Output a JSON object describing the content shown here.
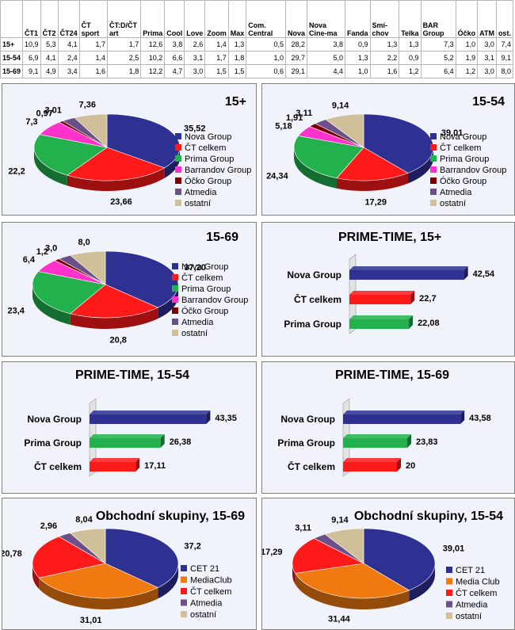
{
  "table": {
    "columns": [
      "",
      "ČT1",
      "ČT2",
      "ČT24",
      "ČT sport",
      "ČT:D/ČT art",
      "Prima",
      "Cool",
      "Love",
      "Zoom",
      "Max",
      "Com. Central",
      "Nova",
      "Nova Cine-ma",
      "Fanda",
      "Smí-chov",
      "Telka",
      "BAR Group",
      "Óčko",
      "ATM",
      "ost."
    ],
    "rows": [
      {
        "label": "15+",
        "values": [
          "10,9",
          "5,3",
          "4,1",
          "1,7",
          "1,7",
          "12,6",
          "3,8",
          "2,6",
          "1,4",
          "1,3",
          "0,5",
          "28,2",
          "3,8",
          "0,9",
          "1,3",
          "1,3",
          "7,3",
          "1,0",
          "3,0",
          "7,4"
        ]
      },
      {
        "label": "15-54",
        "values": [
          "6,9",
          "4,1",
          "2,4",
          "1,4",
          "2,5",
          "10,2",
          "6,6",
          "3,1",
          "1,7",
          "1,8",
          "1,0",
          "29,7",
          "5,0",
          "1,3",
          "2,2",
          "0,9",
          "5,2",
          "1,9",
          "3,1",
          "9,1"
        ]
      },
      {
        "label": "15-69",
        "values": [
          "9,1",
          "4,9",
          "3,4",
          "1,6",
          "1,8",
          "12,2",
          "4,7",
          "3,0",
          "1,5",
          "1,5",
          "0,6",
          "29,1",
          "4,4",
          "1,0",
          "1,6",
          "1,2",
          "6,4",
          "1,2",
          "3,0",
          "8,0"
        ]
      }
    ]
  },
  "colors": {
    "nova": "#2e3192",
    "ct": "#ff1a1a",
    "prima": "#22b14c",
    "barrandov": "#ff33cc",
    "ocko": "#7a0000",
    "atmedia": "#6b4f8a",
    "ostatni": "#cfc09a",
    "mediaclub": "#f07a10"
  },
  "chart_data": [
    {
      "type": "pie",
      "title": "15+",
      "categories": [
        "Nova Group",
        "ČT celkem",
        "Prima Group",
        "Barrandov Group",
        "Óčko Group",
        "Atmedia",
        "ostatní"
      ],
      "keys": [
        "nova",
        "ct",
        "prima",
        "barrandov",
        "ocko",
        "atmedia",
        "ostatni"
      ],
      "values": [
        35.52,
        23.66,
        22.2,
        7.3,
        0.97,
        3.01,
        7.36
      ],
      "value_labels": [
        "35,52",
        "23,66",
        "22,2",
        "7,3",
        "0,97",
        "3,01",
        "7,36"
      ],
      "legend": "right"
    },
    {
      "type": "pie",
      "title": "15-54",
      "categories": [
        "Nova Group",
        "ČT celkem",
        "Prima Group",
        "Barrandov Group",
        "Óčko Group",
        "Atmedia",
        "ostatní"
      ],
      "keys": [
        "nova",
        "ct",
        "prima",
        "barrandov",
        "ocko",
        "atmedia",
        "ostatni"
      ],
      "values": [
        39.01,
        17.29,
        24.34,
        5.18,
        1.91,
        3.11,
        9.14
      ],
      "value_labels": [
        "39,01",
        "17,29",
        "24,34",
        "5,18",
        "1,91",
        "3,11",
        "9,14"
      ],
      "legend": "right"
    },
    {
      "type": "pie",
      "title": "15-69",
      "categories": [
        "Nova Group",
        "ČT celkem",
        "Prima Group",
        "Barrandov Group",
        "Óčko Group",
        "Atmedia",
        "ostatní"
      ],
      "keys": [
        "nova",
        "ct",
        "prima",
        "barrandov",
        "ocko",
        "atmedia",
        "ostatni"
      ],
      "values": [
        37.2,
        20.8,
        23.4,
        6.4,
        1.2,
        3.0,
        8.0
      ],
      "value_labels": [
        "37,20",
        "20,8",
        "23,4",
        "6,4",
        "1,2",
        "3,0",
        "8,0"
      ],
      "legend": "right"
    },
    {
      "type": "bar",
      "title": "PRIME-TIME, 15+",
      "categories": [
        "Nova Group",
        "ČT celkem",
        "Prima Group"
      ],
      "keys": [
        "nova",
        "ct",
        "prima"
      ],
      "values": [
        42.54,
        22.7,
        22.08
      ],
      "value_labels": [
        "42,54",
        "22,7",
        "22,08"
      ],
      "xlim": [
        0,
        50
      ]
    },
    {
      "type": "bar",
      "title": "PRIME-TIME, 15-54",
      "categories": [
        "Nova Group",
        "Prima Group",
        "ČT celkem"
      ],
      "keys": [
        "nova",
        "prima",
        "ct"
      ],
      "values": [
        43.35,
        26.38,
        17.11
      ],
      "value_labels": [
        "43,35",
        "26,38",
        "17,11"
      ],
      "xlim": [
        0,
        50
      ]
    },
    {
      "type": "bar",
      "title": "PRIME-TIME, 15-69",
      "categories": [
        "Nova Group",
        "Prima Group",
        "ČT celkem"
      ],
      "keys": [
        "nova",
        "prima",
        "ct"
      ],
      "values": [
        43.58,
        23.83,
        20
      ],
      "value_labels": [
        "43,58",
        "23,83",
        "20"
      ],
      "xlim": [
        0,
        50
      ]
    },
    {
      "type": "pie",
      "title": "Obchodní skupiny, 15-69",
      "categories": [
        "CET 21",
        "MediaClub",
        "ČT celkem",
        "Atmedia",
        "ostatní"
      ],
      "keys": [
        "nova",
        "mediaclub",
        "ct",
        "atmedia",
        "ostatni"
      ],
      "values": [
        37.2,
        31.01,
        20.78,
        2.96,
        8.04
      ],
      "value_labels": [
        "37,2",
        "31,01",
        "20,78",
        "2,96",
        "8,04"
      ],
      "legend": "right"
    },
    {
      "type": "pie",
      "title": "Obchodní skupiny, 15-54",
      "categories": [
        "CET 21",
        "Media Club",
        "ČT celkem",
        "Atmedia",
        "ostatní"
      ],
      "keys": [
        "nova",
        "mediaclub",
        "ct",
        "atmedia",
        "ostatni"
      ],
      "values": [
        39.01,
        31.44,
        17.29,
        3.11,
        9.14
      ],
      "value_labels": [
        "39,01",
        "31,44",
        "17,29",
        "3,11",
        "9,14"
      ],
      "legend": "right"
    }
  ]
}
